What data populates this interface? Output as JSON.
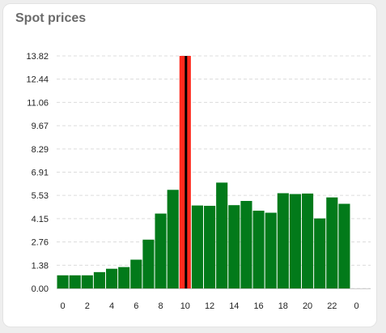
{
  "card": {
    "title": "Spot prices"
  },
  "colors": {
    "bar": "#027a1a",
    "highlight": "#ff2b1e",
    "current_marker": "#000000",
    "grid": "#dcdcdc"
  },
  "chart_data": {
    "type": "bar",
    "title": "",
    "xlabel": "",
    "ylabel": "",
    "categories": [
      "0",
      "1",
      "2",
      "3",
      "4",
      "5",
      "6",
      "7",
      "8",
      "9",
      "10",
      "11",
      "12",
      "13",
      "14",
      "15",
      "16",
      "17",
      "18",
      "19",
      "20",
      "21",
      "22",
      "23"
    ],
    "values": [
      0.78,
      0.78,
      0.78,
      0.97,
      1.17,
      1.27,
      1.71,
      2.9,
      4.45,
      5.86,
      13.82,
      4.93,
      4.91,
      6.29,
      4.95,
      5.2,
      4.62,
      4.5,
      5.66,
      5.61,
      5.64,
      4.16,
      5.41,
      5.03
    ],
    "highlight_index": 10,
    "y_ticks": [
      "0.00",
      "1.38",
      "2.76",
      "4.15",
      "5.53",
      "6.91",
      "8.29",
      "9.67",
      "11.06",
      "12.44",
      "13.82"
    ],
    "x_ticks": [
      "0",
      "2",
      "4",
      "6",
      "8",
      "10",
      "12",
      "14",
      "16",
      "18",
      "20",
      "22",
      "0"
    ],
    "ylim": [
      0,
      13.82
    ],
    "grid": true
  }
}
